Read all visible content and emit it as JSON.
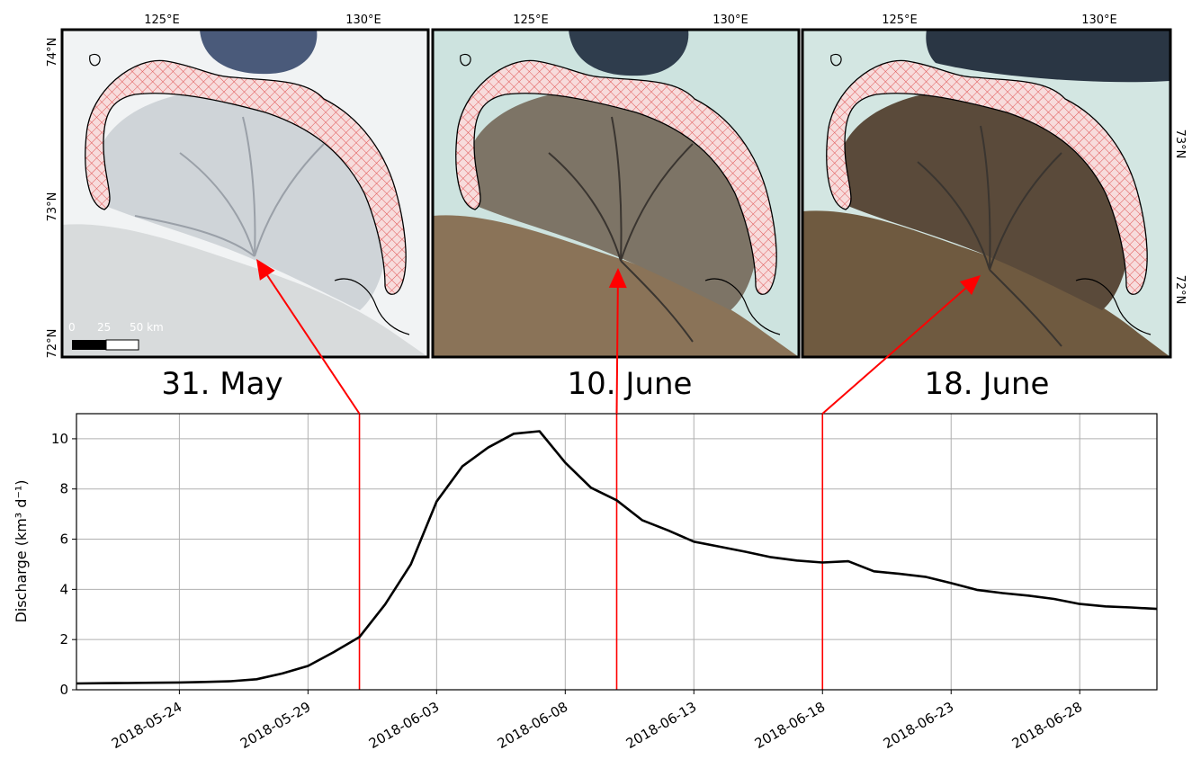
{
  "panels": [
    {
      "caption": "31. May",
      "colors": {
        "land": "#e4e7ea",
        "delta": "#cfd4d8",
        "sea": "#f1f3f4",
        "south": "#d8dbdc",
        "ice_dark": "#4a5a7a"
      },
      "lon_labels": [
        "125°E",
        "130°E"
      ],
      "lat_labels": [
        "74°N",
        "73°N",
        "72°N"
      ],
      "scale_labels": [
        "0",
        "25",
        "50 km"
      ]
    },
    {
      "caption": "10. June",
      "colors": {
        "land": "#9b8a72",
        "delta": "#7d7466",
        "sea": "#cde3df",
        "south": "#8a7358",
        "ice_dark": "#2f3d4d"
      }
    },
    {
      "caption": "18. June",
      "colors": {
        "land": "#7a6048",
        "delta": "#5a4a3a",
        "sea": "#d3e6e2",
        "south": "#6f5a40",
        "ice_dark": "#2a3644"
      },
      "lat_labels_right": [
        "73°N",
        "72°N"
      ]
    }
  ],
  "chart_data": {
    "type": "line",
    "ylabel": "Discharge (km³ d⁻¹)",
    "x_start": "2018-05-20",
    "x_end": "2018-07-01",
    "ylim": [
      0,
      11
    ],
    "yticks": [
      0,
      2,
      4,
      6,
      8,
      10
    ],
    "xtick_labels": [
      "2018-05-24",
      "2018-05-29",
      "2018-06-03",
      "2018-06-08",
      "2018-06-13",
      "2018-06-18",
      "2018-06-23",
      "2018-06-28"
    ],
    "grid": true,
    "series": [
      {
        "color": "#000000",
        "x": [
          "2018-05-20",
          "2018-05-21",
          "2018-05-22",
          "2018-05-23",
          "2018-05-24",
          "2018-05-25",
          "2018-05-26",
          "2018-05-27",
          "2018-05-28",
          "2018-05-29",
          "2018-05-30",
          "2018-05-31",
          "2018-06-01",
          "2018-06-02",
          "2018-06-03",
          "2018-06-04",
          "2018-06-05",
          "2018-06-06",
          "2018-06-07",
          "2018-06-08",
          "2018-06-09",
          "2018-06-10",
          "2018-06-11",
          "2018-06-12",
          "2018-06-13",
          "2018-06-14",
          "2018-06-15",
          "2018-06-16",
          "2018-06-17",
          "2018-06-18",
          "2018-06-19",
          "2018-06-20",
          "2018-06-21",
          "2018-06-22",
          "2018-06-23",
          "2018-06-24",
          "2018-06-25",
          "2018-06-26",
          "2018-06-27",
          "2018-06-28",
          "2018-06-29",
          "2018-06-30",
          "2018-07-01"
        ],
        "y": [
          0.25,
          0.26,
          0.27,
          0.28,
          0.29,
          0.31,
          0.34,
          0.42,
          0.65,
          0.95,
          1.5,
          2.1,
          3.4,
          5.0,
          7.5,
          8.9,
          9.65,
          10.2,
          10.3,
          9.05,
          8.05,
          7.55,
          6.75,
          6.35,
          5.9,
          5.7,
          5.5,
          5.28,
          5.15,
          5.07,
          5.12,
          4.72,
          4.62,
          4.5,
          4.25,
          3.98,
          3.85,
          3.75,
          3.62,
          3.42,
          3.32,
          3.28,
          3.22
        ]
      }
    ],
    "markers": [
      {
        "date": "2018-05-31",
        "color": "#ff0000"
      },
      {
        "date": "2018-06-10",
        "color": "#ff0000"
      },
      {
        "date": "2018-06-18",
        "color": "#ff0000"
      }
    ]
  }
}
